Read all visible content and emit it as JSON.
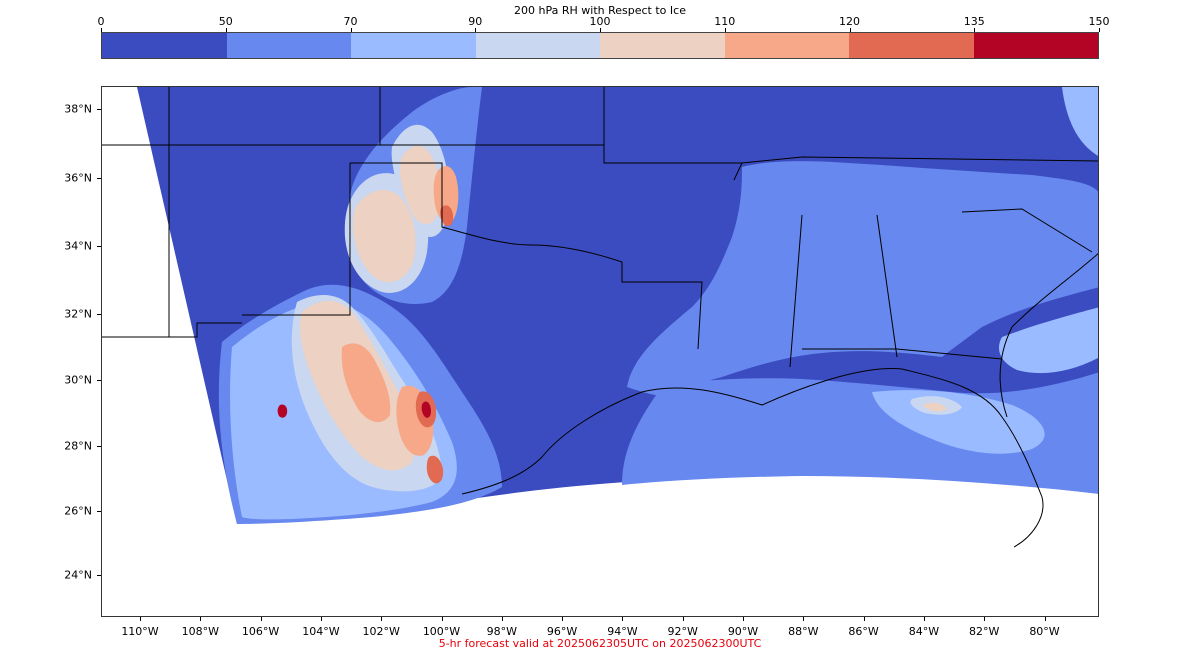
{
  "colorbar": {
    "title": "200 hPa RH with Respect to Ice",
    "ticks": [
      "0",
      "50",
      "70",
      "90",
      "100",
      "110",
      "120",
      "135",
      "150"
    ],
    "colors": [
      "#3b4cc0",
      "#6788ee",
      "#9abbff",
      "#c9d7f0",
      "#edd1c2",
      "#f7a889",
      "#e26952",
      "#b40426"
    ]
  },
  "map": {
    "lat_labels": [
      "38°N",
      "36°N",
      "34°N",
      "32°N",
      "30°N",
      "28°N",
      "26°N",
      "24°N"
    ],
    "lon_labels": [
      "110°W",
      "108°W",
      "106°W",
      "104°W",
      "102°W",
      "100°W",
      "98°W",
      "96°W",
      "94°W",
      "92°W",
      "90°W",
      "88°W",
      "86°W",
      "84°W",
      "82°W",
      "80°W"
    ],
    "field_colors": {
      "base": "#3b4cc0",
      "lvl50": "#6788ee",
      "lvl70": "#9abbff",
      "lvl90": "#c9d7f0",
      "lvl100": "#edd1c2",
      "lvl110": "#f7a889",
      "lvl120": "#e26952",
      "lvl135": "#b40426"
    }
  },
  "footer": {
    "text": "5-hr forecast valid at 2025062305UTC on 2025062300UTC"
  }
}
